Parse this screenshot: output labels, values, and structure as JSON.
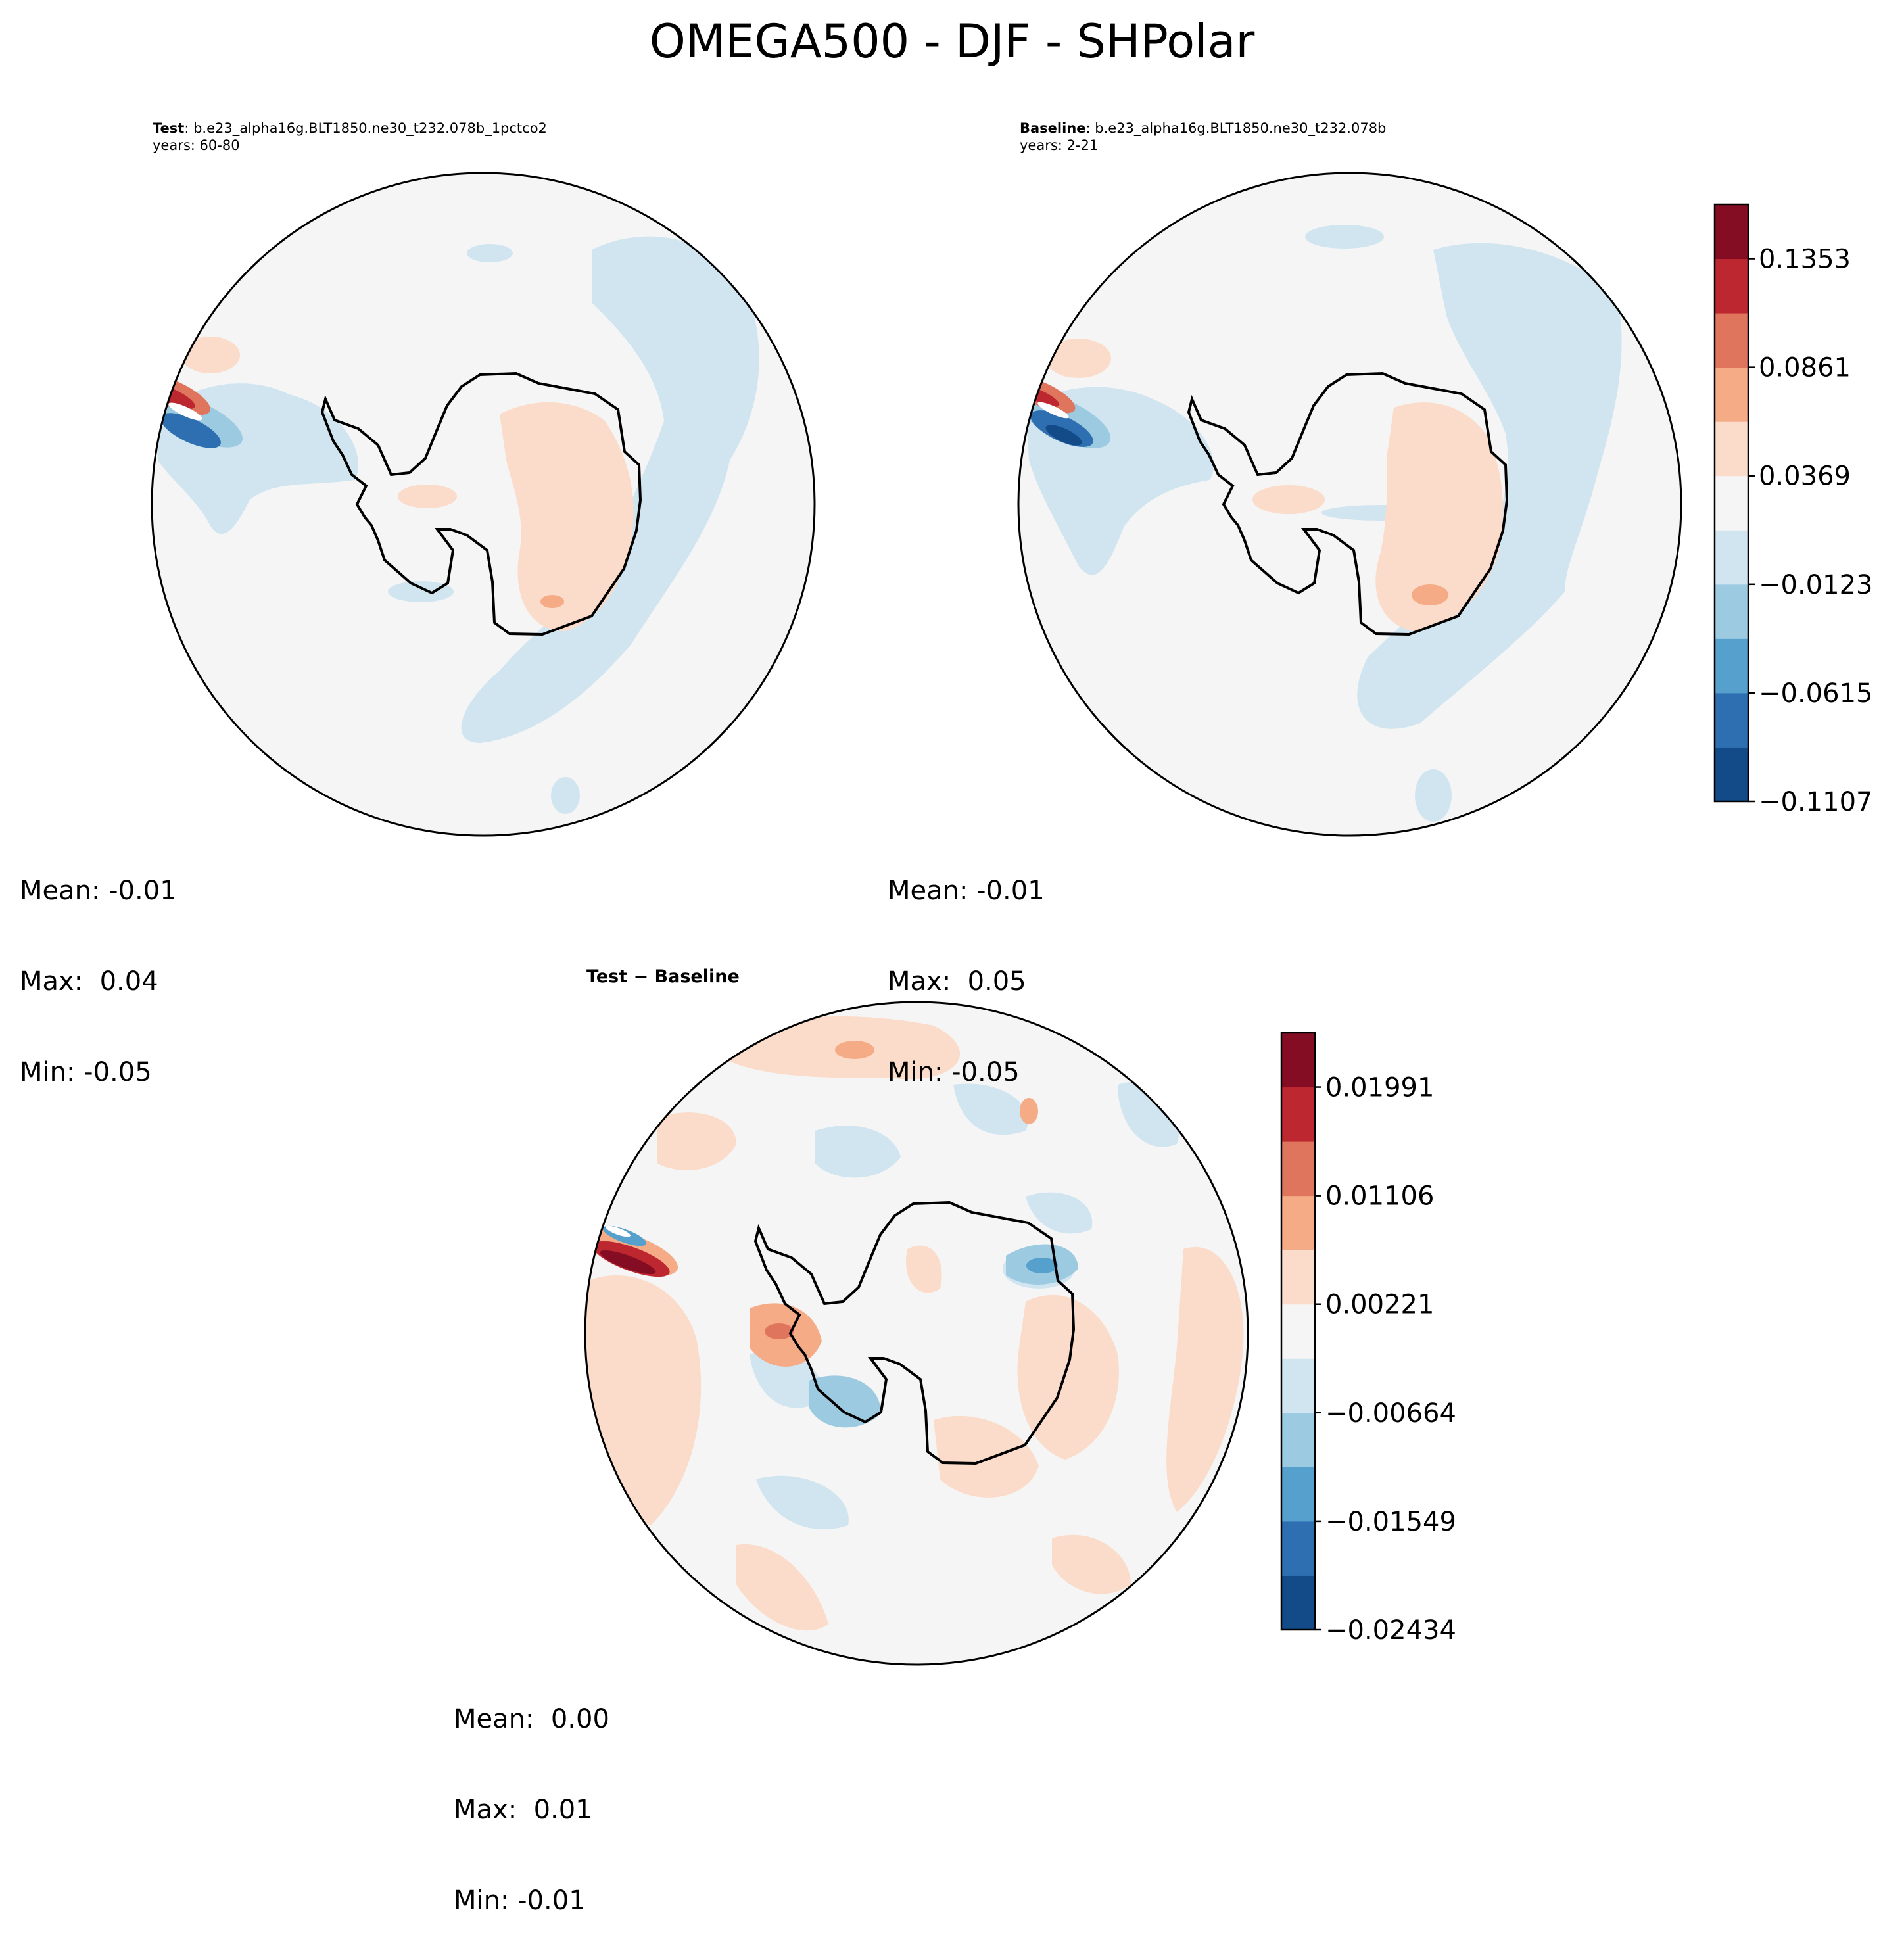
{
  "title": "OMEGA500 - DJF - SHPolar",
  "colors": {
    "blue_ramp": [
      "#124b87",
      "#2d6fb0",
      "#56a0cd",
      "#9ccae0",
      "#d1e5f0"
    ],
    "neutral": "#f5f5f5",
    "red_ramp": [
      "#fbdbc9",
      "#f4ab86",
      "#e0755d",
      "#bd2830",
      "#850d23"
    ]
  },
  "test_panel": {
    "label": "Test",
    "case": "b.e23_alpha16g.BLT1850.ne30_t232.078b_1pctco2",
    "years": "years: 60-80",
    "stats": {
      "mean": "Mean: -0.01",
      "max": "Max:  0.04",
      "min": "Min: -0.05"
    }
  },
  "baseline_panel": {
    "label": "Baseline",
    "case": "b.e23_alpha16g.BLT1850.ne30_t232.078b",
    "years": "years: 2-21",
    "stats": {
      "mean": "Mean: -0.01",
      "max": "Max:  0.05",
      "min": "Min: -0.05"
    }
  },
  "diff_panel": {
    "label": "Test − Baseline",
    "stats": {
      "mean": "Mean:  0.00",
      "max": "Max:  0.01",
      "min": "Min: -0.01"
    }
  },
  "chart_data": [
    {
      "type": "heatmap",
      "name": "Test",
      "projection": "south polar stereographic",
      "levels": [
        -0.1107,
        -0.0861,
        -0.0615,
        -0.0369,
        -0.0123,
        0.0123,
        0.0369,
        0.0615,
        0.0861,
        0.1107,
        0.1353,
        0.1599
      ],
      "stats": {
        "mean": -0.01,
        "max": 0.04,
        "min": -0.05
      }
    },
    {
      "type": "heatmap",
      "name": "Baseline",
      "projection": "south polar stereographic",
      "levels": [
        -0.1107,
        -0.0861,
        -0.0615,
        -0.0369,
        -0.0123,
        0.0123,
        0.0369,
        0.0615,
        0.0861,
        0.1107,
        0.1353,
        0.1599
      ],
      "colorbar_ticks": [
        "−0.1107",
        "−0.0615",
        "−0.0123",
        "0.0369",
        "0.0861",
        "0.1353"
      ],
      "stats": {
        "mean": -0.01,
        "max": 0.05,
        "min": -0.05
      }
    },
    {
      "type": "heatmap",
      "name": "Test − Baseline",
      "projection": "south polar stereographic",
      "levels": [
        -0.02434,
        -0.01991,
        -0.01549,
        -0.01106,
        -0.00664,
        -0.00221,
        0.00221,
        0.00664,
        0.01106,
        0.01549,
        0.01991,
        0.02434
      ],
      "colorbar_ticks": [
        "−0.02434",
        "−0.01549",
        "−0.00664",
        "0.00221",
        "0.01106",
        "0.01991"
      ],
      "stats": {
        "mean": 0.0,
        "max": 0.01,
        "min": -0.01
      }
    }
  ]
}
